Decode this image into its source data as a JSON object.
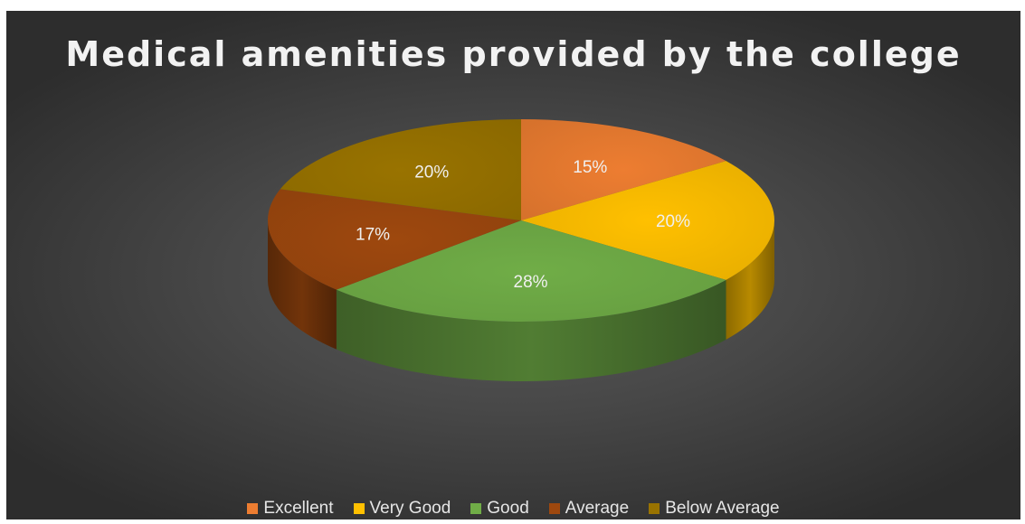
{
  "chart_data": {
    "type": "pie",
    "title": "Medical amenities provided by the college",
    "categories": [
      "Excellent",
      "Very Good",
      "Good",
      "Average",
      "Below Average"
    ],
    "values": [
      15,
      20,
      28,
      17,
      20
    ],
    "data_labels": [
      "15%",
      "20%",
      "28%",
      "17%",
      "20%"
    ],
    "colors": [
      "#ED7D31",
      "#FFC000",
      "#70AD47",
      "#9E480E",
      "#997300"
    ],
    "legend_position": "bottom",
    "style": "3d"
  }
}
